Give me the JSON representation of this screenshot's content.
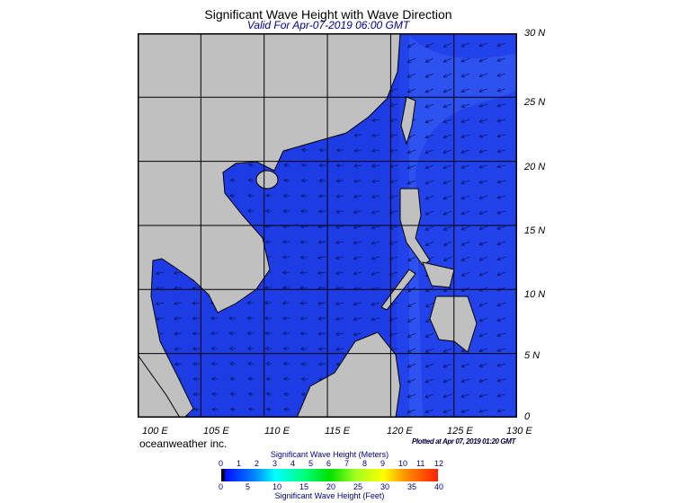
{
  "header": {
    "title": "Significant Wave Height with Wave Direction",
    "subtitle": "Valid For Apr-07-2019 06:00 GMT"
  },
  "map": {
    "lat_labels": [
      "30 N",
      "25 N",
      "20 N",
      "15 N",
      "10 N",
      "5 N",
      "0"
    ],
    "lon_labels": [
      "100 E",
      "105 E",
      "110 E",
      "115 E",
      "120 E",
      "125 E",
      "130 E"
    ],
    "ocean_color": "#1e3ce6",
    "land_color": "#c0c0c0",
    "dominant_wave_direction": "from northeast"
  },
  "footer": {
    "brand": "oceanweather inc.",
    "plotted": "Plotted at Apr 07, 2019 01:20 GMT"
  },
  "colorbar": {
    "meters_title": "Significant Wave Height (Meters)",
    "feet_title": "Significant Wave Height (Feet)",
    "meters_ticks": [
      "0",
      "1",
      "2",
      "3",
      "4",
      "5",
      "6",
      "7",
      "8",
      "9",
      "10",
      "11",
      "12"
    ],
    "feet_ticks": [
      "0",
      "5",
      "10",
      "15",
      "20",
      "25",
      "30",
      "35",
      "40"
    ]
  }
}
